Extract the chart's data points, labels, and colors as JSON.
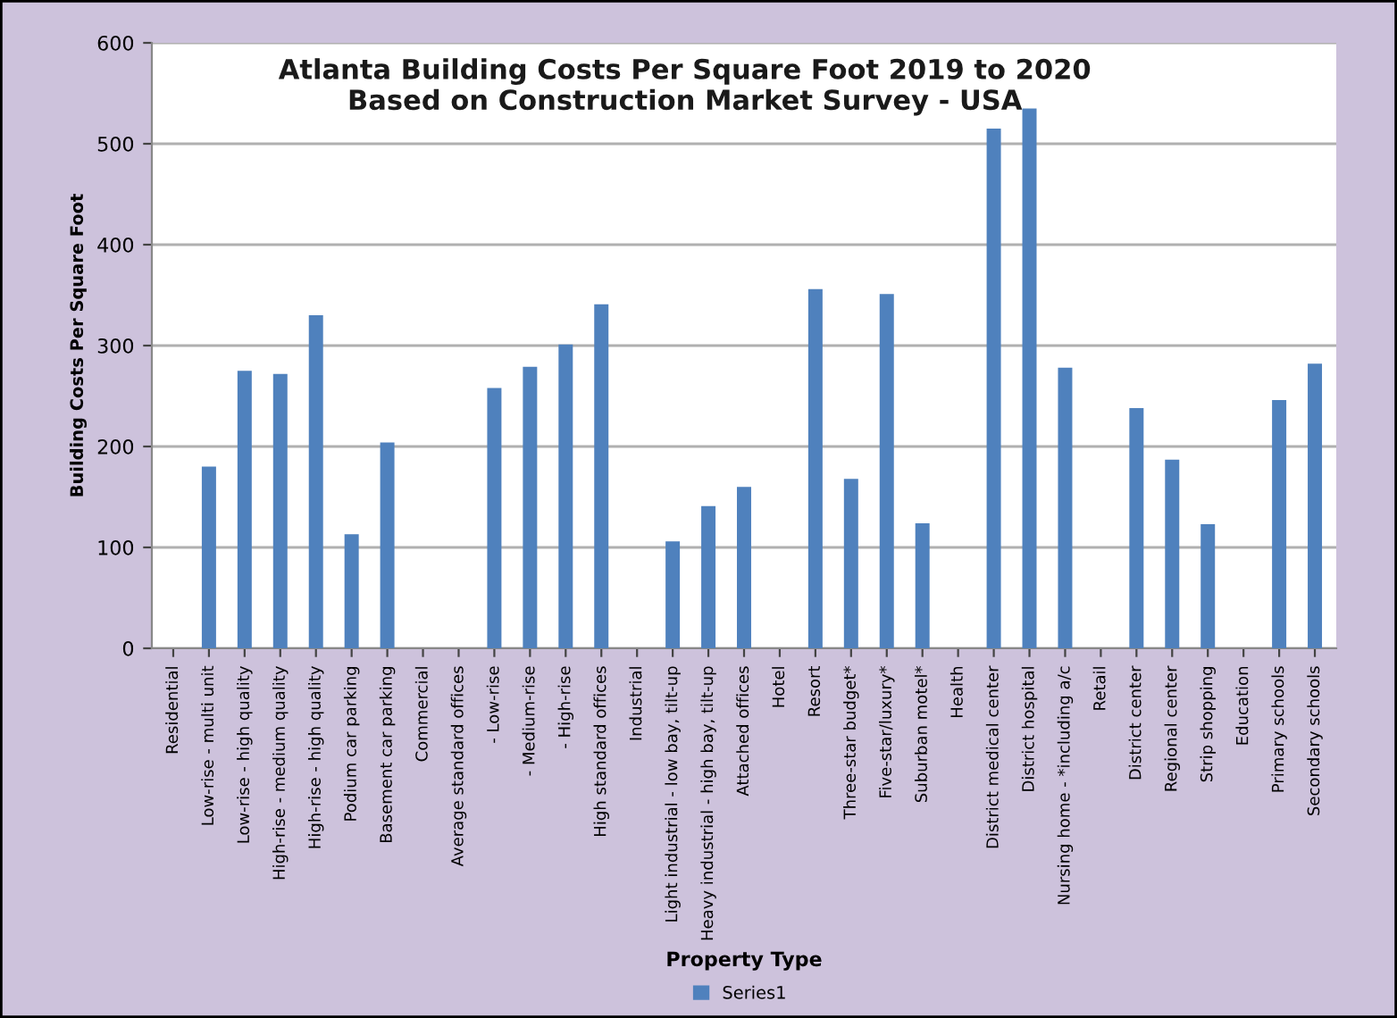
{
  "chart_data": {
    "type": "bar",
    "title": "Atlanta Building Costs Per Square Foot 2019 to 2020\nBased on Construction Market Survey - USA",
    "xlabel": "Property Type",
    "ylabel": "Building Costs Per Square Foot",
    "categories": [
      "Residential",
      "Low-rise - multi unit",
      "Low-rise - high quality",
      "High-rise - medium quality",
      "High-rise - high quality",
      "Podium car parking",
      "Basement car parking",
      "Commercial",
      "Average standard offices",
      "- Low-rise",
      "- Medium-rise",
      "- High-rise",
      "High standard offices",
      "Industrial",
      "Light industrial - low bay, tilt-up",
      "Heavy industrial - high bay, tilt-up",
      "Attached offices",
      "Hotel",
      "Resort",
      "Three-star budget*",
      "Five-star/luxury*",
      "Suburban motel*",
      "Health",
      "District medical center",
      "District hospital",
      "Nursing home - *including a/c",
      "Retail",
      "District center",
      "Regional center",
      "Strip shopping",
      "Education",
      "Primary schools",
      "Secondary schools"
    ],
    "series": [
      {
        "name": "Series1",
        "color": "#4f81bd",
        "values": [
          null,
          180,
          275,
          272,
          330,
          113,
          204,
          null,
          null,
          258,
          279,
          301,
          341,
          null,
          106,
          141,
          160,
          null,
          356,
          168,
          351,
          124,
          null,
          515,
          535,
          278,
          null,
          238,
          187,
          123,
          null,
          246,
          282
        ]
      }
    ],
    "ylim": [
      0,
      600
    ],
    "yticks": [
      0,
      100,
      200,
      300,
      400,
      500,
      600
    ],
    "grid": "y",
    "legend": "bottom"
  }
}
